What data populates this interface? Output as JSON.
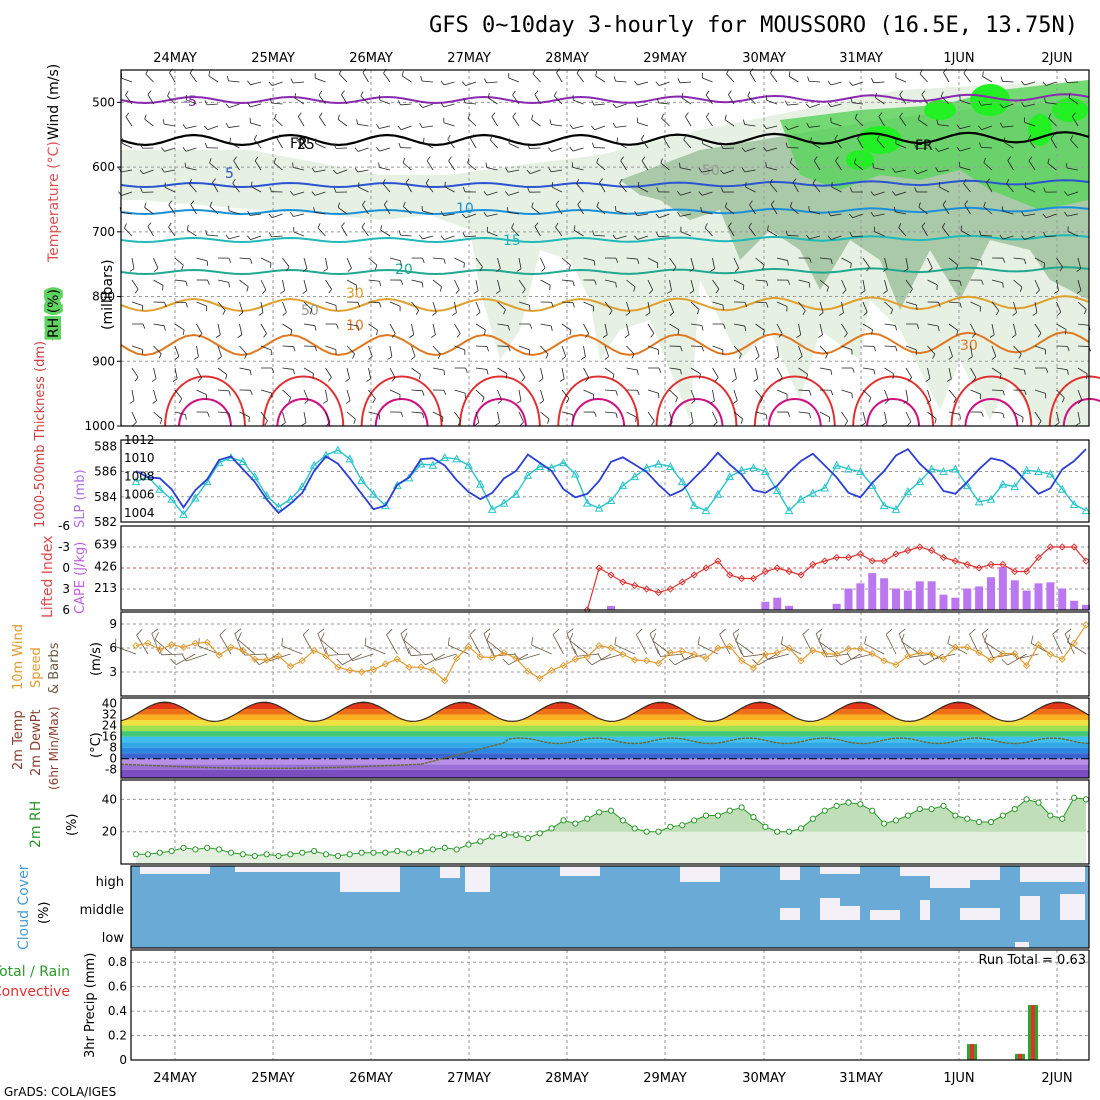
{
  "title": "GFS 0~10day 3-hourly for MOUSSORO (16.5E, 13.75N)",
  "footer": "GrADS: COLA/IGES",
  "dates": [
    "24MAY",
    "25MAY",
    "26MAY",
    "27MAY",
    "28MAY",
    "29MAY",
    "30MAY",
    "31MAY",
    "1JUN",
    "2JUN"
  ],
  "colors": {
    "rh_light": "#e6f1e4",
    "rh_mid": "#a9c9a8",
    "rh_dark": "#8fb08c",
    "rh_green": "#5fd35f",
    "rh_bright": "#22f022",
    "slp": "#2b3fd6",
    "thick": "#28c4cc",
    "cape": "#bb77f0",
    "li": "#d33",
    "wind": "#e29a2e",
    "barb": "#6b5a45",
    "rh2m": "#2a9a2a",
    "cloud": "#6aaad6",
    "rain": "#2aa82a",
    "conv": "#e23030"
  },
  "panels": {
    "upper": {
      "y_axis_title": "(millibars)",
      "rh_label": "RH (%)",
      "temp_label": "Temperature (°C)",
      "wind_label": "Wind (m/s)",
      "yticks": [
        "500",
        "600",
        "700",
        "800",
        "900",
        "1000"
      ],
      "freezing_label": "FR",
      "contour_labels": [
        "-5",
        "5",
        "10",
        "15",
        "20",
        "25",
        "30",
        "10",
        "50",
        "50",
        "30"
      ]
    },
    "slp": {
      "label_left": "1000-500mb Thickness (dm)",
      "label_right": "SLP (mb)",
      "thick_ticks": [
        "588",
        "586",
        "584",
        "582"
      ],
      "slp_ticks": [
        "1012",
        "1010",
        "1008",
        "1006",
        "1004"
      ]
    },
    "cape": {
      "label_left": "Lifted Index",
      "label_right": "CAPE (J/kg)",
      "li_ticks": [
        "-6",
        "-3",
        "0",
        "3",
        "6"
      ],
      "cape_ticks": [
        "639",
        "426",
        "213"
      ]
    },
    "wind10": {
      "label": "10m Wind Speed & Barbs",
      "unit": "(m/s)",
      "ticks": [
        "9",
        "6",
        "3"
      ]
    },
    "temp2m": {
      "label": "2m Temp 2m DewPt (6hr Min/Max)",
      "unit": "(°C)",
      "ticks": [
        "40",
        "32",
        "24",
        "16",
        "8",
        "0",
        "-8"
      ]
    },
    "rh2m": {
      "label": "2m RH",
      "unit": "(%)",
      "ticks": [
        "40",
        "20"
      ]
    },
    "cloud": {
      "label": "Cloud Cover",
      "unit": "(%)",
      "levels": [
        "high",
        "middle",
        "low"
      ]
    },
    "precip": {
      "label_total": "Total / Rain",
      "label_conv": "Convective",
      "label_axis": "3hr Precip (mm)",
      "ticks": [
        "0.8",
        "0.6",
        "0.4",
        "0.2",
        "0"
      ],
      "run_total": "Run Total = 0.63"
    }
  },
  "chart_data": [
    {
      "type": "line",
      "title": "1000-500mb Thickness / SLP",
      "series": [
        {
          "name": "1000-500mb Thickness (dm)",
          "values": [
            585.2,
            585.6,
            584.6,
            583.8,
            582.6,
            583.9,
            585.2,
            586.7,
            587.1,
            586.8,
            585.6,
            584.1,
            583.2,
            583.8,
            584.8,
            586.5,
            587.3,
            587.7,
            587.0,
            585.3,
            584.2,
            583.3,
            584.9,
            585.5,
            586.6,
            586.5,
            587.1,
            587.0,
            586.5,
            585.0,
            583.0,
            583.5,
            584.2,
            585.7,
            586.4,
            586.3,
            586.7,
            585.8,
            583.5,
            583.1,
            583.7,
            584.9,
            585.6,
            586.3,
            586.6,
            586.4,
            585.2,
            583.3,
            582.9,
            584.2,
            585.6,
            586.1,
            586.3,
            586.0,
            584.5,
            582.9,
            583.8,
            584.3,
            584.7,
            586.5,
            586.2,
            586.0,
            584.9,
            583.3,
            583.0,
            584.4,
            585.2,
            586.2,
            586.0,
            586.2,
            584.9,
            583.6,
            583.8,
            585.0,
            584.8,
            586.1,
            586.0,
            585.8,
            584.6,
            583.4,
            582.9
          ]
        },
        {
          "name": "SLP (mb)",
          "values": [
            1008.6,
            1007.9,
            1007.8,
            1006.6,
            1004.6,
            1006.5,
            1007.7,
            1009.8,
            1010.2,
            1008.8,
            1007.4,
            1005.5,
            1004.0,
            1005.0,
            1006.2,
            1008.6,
            1010.2,
            1009.4,
            1007.8,
            1006.1,
            1004.4,
            1004.8,
            1007.1,
            1007.9,
            1009.9,
            1010.0,
            1009.2,
            1007.6,
            1006.3,
            1005.5,
            1006.2,
            1007.8,
            1008.6,
            1010.4,
            1009.5,
            1008.6,
            1006.6,
            1005.7,
            1006.1,
            1007.5,
            1009.6,
            1010.1,
            1009.3,
            1008.5,
            1007.1,
            1005.9,
            1006.5,
            1007.8,
            1009.1,
            1010.6,
            1009.3,
            1008.2,
            1006.5,
            1006.2,
            1007.0,
            1008.5,
            1009.7,
            1010.5,
            1009.2,
            1007.9,
            1006.2,
            1005.7,
            1007.3,
            1008.6,
            1010.3,
            1011.0,
            1009.4,
            1008.2,
            1006.4,
            1006.1,
            1007.4,
            1008.8,
            1010.0,
            1009.7,
            1008.8,
            1007.4,
            1006.1,
            1006.7,
            1008.8,
            1009.7,
            1011.0
          ]
        }
      ]
    },
    {
      "type": "bar",
      "title": "CAPE (J/kg) and Lifted Index",
      "series": [
        {
          "name": "CAPE (J/kg)",
          "values": [
            0,
            0,
            0,
            0,
            0,
            0,
            0,
            0,
            0,
            0,
            0,
            0,
            0,
            0,
            0,
            0,
            0,
            0,
            0,
            0,
            0,
            0,
            0,
            0,
            0,
            0,
            0,
            0,
            0,
            0,
            0,
            0,
            0,
            0,
            0,
            0,
            0,
            0,
            0,
            0,
            40,
            0,
            0,
            0,
            0,
            0,
            0,
            0,
            0,
            0,
            0,
            0,
            0,
            80,
            120,
            40,
            0,
            0,
            0,
            60,
            210,
            260,
            360,
            310,
            210,
            190,
            280,
            280,
            150,
            120,
            210,
            230,
            320,
            420,
            290,
            190,
            260,
            270,
            210,
            90,
            50
          ]
        },
        {
          "name": "Lifted Index",
          "values": [
            null,
            null,
            null,
            null,
            null,
            null,
            null,
            null,
            null,
            null,
            null,
            null,
            null,
            null,
            null,
            null,
            null,
            null,
            null,
            null,
            null,
            null,
            null,
            null,
            null,
            null,
            null,
            null,
            null,
            null,
            null,
            null,
            null,
            null,
            null,
            null,
            null,
            null,
            6,
            0,
            1,
            2,
            2.5,
            3,
            3.5,
            3,
            2,
            1,
            0,
            -1,
            1,
            1.5,
            1.5,
            0.5,
            0,
            0.5,
            1,
            -0.5,
            -1,
            -1.5,
            -1.5,
            -2,
            -1,
            -1,
            -2,
            -2.5,
            -3,
            -2.5,
            -1.5,
            -1,
            -0.5,
            0,
            -0.5,
            -0.5,
            0.5,
            0.5,
            -1.5,
            -3,
            -3,
            -3,
            -1
          ]
        }
      ]
    },
    {
      "type": "line",
      "title": "10m Wind Speed (m/s)",
      "series": [
        {
          "name": "10m Wind Speed",
          "values": [
            6.3,
            6.6,
            5.8,
            6.4,
            6.1,
            6.6,
            6.7,
            5.1,
            6.1,
            5.7,
            4.6,
            4.5,
            5.0,
            3.7,
            4.4,
            5.7,
            5.0,
            3.6,
            3.2,
            3.0,
            3.3,
            4.0,
            4.6,
            3.6,
            3.6,
            3.2,
            1.9,
            4.7,
            6.2,
            4.9,
            4.8,
            5.4,
            4.7,
            3.1,
            2.2,
            3.2,
            3.8,
            4.6,
            4.9,
            6.3,
            6.0,
            5.2,
            4.5,
            4.4,
            4.1,
            5.4,
            5.6,
            5.2,
            4.7,
            6.0,
            6.2,
            4.4,
            3.5,
            5.2,
            5.4,
            6.0,
            4.4,
            5.7,
            5.3,
            5.2,
            5.9,
            5.9,
            5.3,
            4.4,
            3.9,
            5.0,
            5.4,
            5.3,
            4.6,
            6.1,
            6.1,
            5.4,
            4.5,
            5.3,
            5.3,
            3.8,
            6.4,
            5.2,
            4.6,
            6.6,
            8.9
          ]
        }
      ]
    },
    {
      "type": "line",
      "title": "2m RH (%)",
      "series": [
        {
          "name": "2m RH",
          "values": [
            6,
            6,
            7,
            8,
            10,
            9,
            10,
            9,
            7,
            6,
            5,
            6,
            5,
            6,
            7,
            8,
            6,
            5,
            6,
            7,
            7,
            7,
            8,
            7,
            8,
            9,
            10,
            9,
            12,
            14,
            17,
            18,
            18,
            16,
            19,
            22,
            27,
            25,
            28,
            32,
            33,
            27,
            22,
            20,
            20,
            23,
            24,
            27,
            30,
            30,
            33,
            35,
            29,
            23,
            20,
            20,
            22,
            28,
            33,
            36,
            38,
            37,
            33,
            25,
            27,
            30,
            34,
            34,
            36,
            30,
            28,
            26,
            26,
            30,
            34,
            40,
            38,
            30,
            28,
            41,
            40
          ]
        }
      ]
    },
    {
      "type": "bar",
      "title": "3hr Precip (mm)",
      "categories": [
        "1JUN 06Z",
        "1JUN 18Z",
        "1JUN 21Z"
      ],
      "series": [
        {
          "name": "Total / Rain",
          "values": [
            0.13,
            0.05,
            0.45
          ]
        },
        {
          "name": "Convective",
          "values": [
            0.13,
            0.05,
            0.45
          ]
        }
      ],
      "ylim": [
        0,
        0.9
      ],
      "annotation": "Run Total = 0.63"
    }
  ]
}
